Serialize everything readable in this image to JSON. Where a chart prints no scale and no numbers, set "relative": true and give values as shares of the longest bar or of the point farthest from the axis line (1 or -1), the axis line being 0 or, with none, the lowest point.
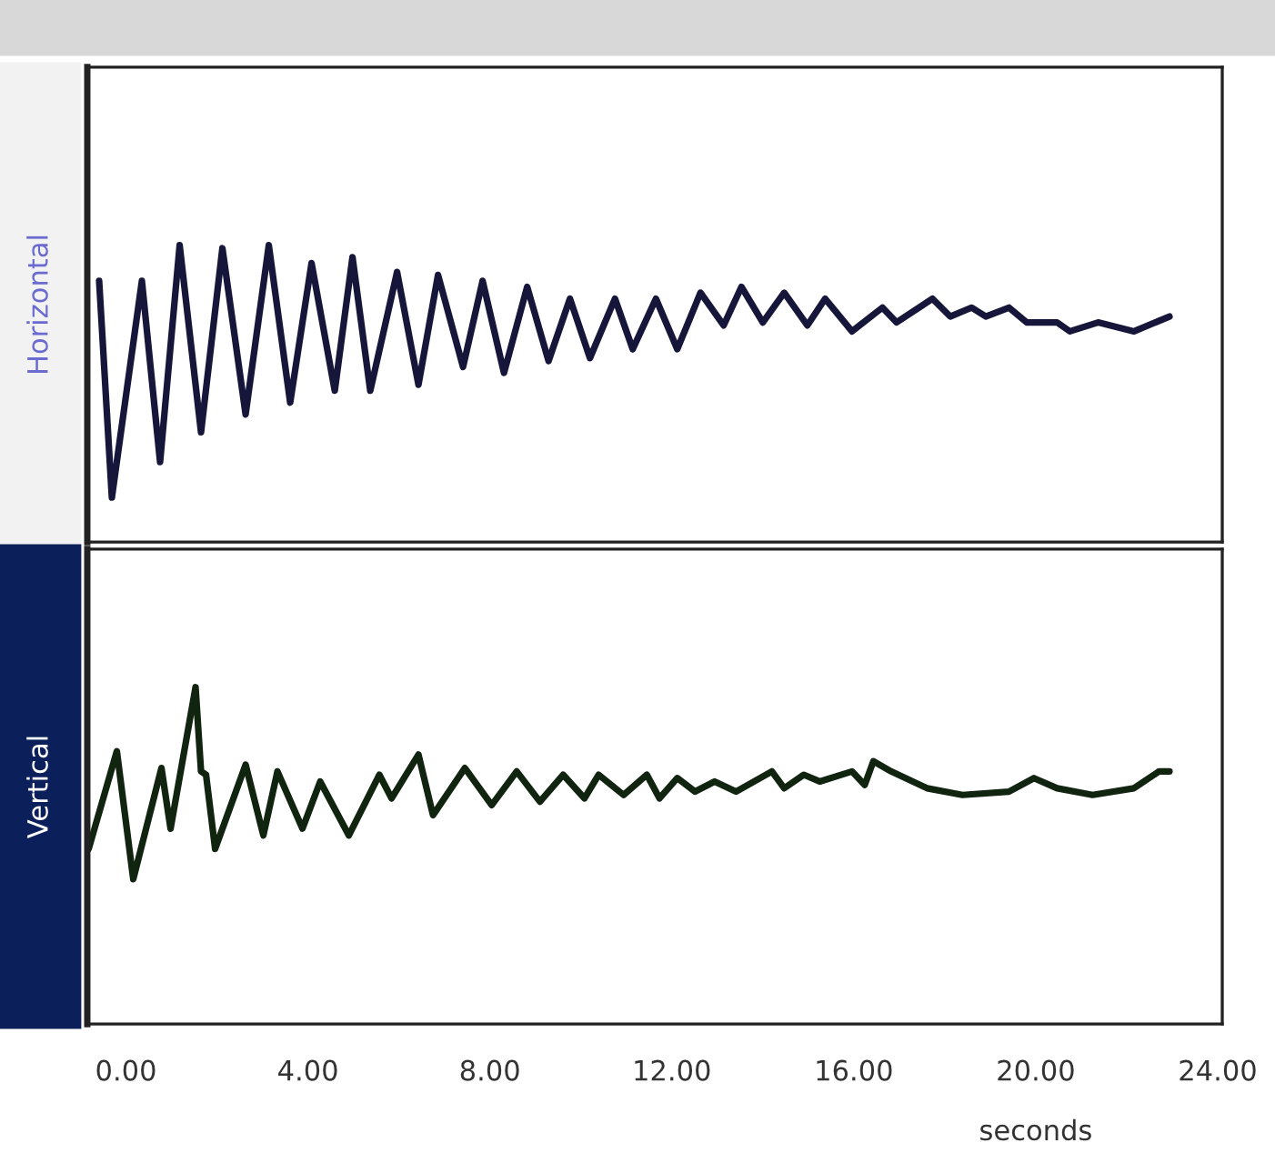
{
  "chart_data": [
    {
      "type": "line",
      "ylabel": "Horizontal",
      "relative": true,
      "xlim": [
        -0.85,
        24.1
      ],
      "tick_labels": false,
      "series": [
        {
          "color": "#16163a",
          "x": [
            -0.59,
            -0.31,
            0.35,
            0.75,
            1.18,
            1.65,
            2.12,
            2.63,
            3.14,
            3.61,
            4.08,
            4.59,
            4.98,
            5.37,
            5.96,
            6.43,
            6.86,
            7.41,
            7.84,
            8.31,
            8.82,
            9.29,
            9.76,
            10.2,
            10.75,
            11.14,
            11.65,
            12.12,
            12.63,
            13.14,
            13.53,
            14.0,
            14.47,
            14.98,
            15.37,
            15.96,
            16.63,
            16.94,
            17.73,
            18.12,
            18.59,
            18.9,
            19.41,
            19.8,
            20.47,
            20.75,
            21.37,
            22.16,
            22.94
          ],
          "values": [
            0.88,
            0.15,
            0.88,
            0.27,
            1.0,
            0.37,
            0.99,
            0.43,
            1.0,
            0.47,
            0.94,
            0.51,
            0.96,
            0.51,
            0.91,
            0.53,
            0.9,
            0.59,
            0.88,
            0.57,
            0.86,
            0.61,
            0.82,
            0.62,
            0.82,
            0.65,
            0.82,
            0.65,
            0.84,
            0.73,
            0.86,
            0.74,
            0.84,
            0.73,
            0.82,
            0.71,
            0.79,
            0.74,
            0.82,
            0.76,
            0.79,
            0.76,
            0.79,
            0.74,
            0.74,
            0.71,
            0.74,
            0.71,
            0.76
          ]
        }
      ]
    },
    {
      "type": "line",
      "ylabel": "Vertical",
      "xlabel": "seconds",
      "relative": true,
      "xlim": [
        -0.85,
        24.1
      ],
      "xticks": [
        {
          "value": 0,
          "label": "0.00"
        },
        {
          "value": 4,
          "label": "4.00"
        },
        {
          "value": 8,
          "label": "8.00"
        },
        {
          "value": 12,
          "label": "12.00"
        },
        {
          "value": 16,
          "label": "16.00"
        },
        {
          "value": 20,
          "label": "20.00"
        },
        {
          "value": 24,
          "label": "24.00"
        }
      ],
      "tick_labels": "x",
      "series": [
        {
          "color": "#102410",
          "x": [
            -0.82,
            -0.2,
            0.16,
            0.78,
            0.98,
            1.53,
            1.65,
            1.76,
            1.96,
            2.63,
            3.02,
            3.33,
            3.88,
            4.27,
            4.9,
            5.57,
            5.84,
            6.43,
            6.75,
            7.45,
            8.04,
            8.59,
            9.1,
            9.61,
            10.08,
            10.39,
            10.94,
            11.45,
            11.73,
            12.12,
            12.51,
            12.94,
            13.41,
            14.2,
            14.47,
            14.9,
            15.25,
            15.96,
            16.24,
            16.43,
            16.82,
            17.61,
            18.39,
            19.41,
            19.96,
            20.47,
            21.25,
            22.16,
            22.71,
            22.94
          ],
          "values": [
            0.52,
            0.81,
            0.43,
            0.76,
            0.58,
            1.0,
            0.75,
            0.74,
            0.52,
            0.77,
            0.56,
            0.75,
            0.58,
            0.72,
            0.56,
            0.74,
            0.67,
            0.8,
            0.62,
            0.76,
            0.65,
            0.75,
            0.66,
            0.74,
            0.67,
            0.74,
            0.68,
            0.74,
            0.67,
            0.73,
            0.69,
            0.72,
            0.69,
            0.75,
            0.7,
            0.74,
            0.72,
            0.75,
            0.71,
            0.78,
            0.75,
            0.7,
            0.68,
            0.69,
            0.73,
            0.7,
            0.68,
            0.7,
            0.75,
            0.75
          ]
        }
      ]
    }
  ]
}
